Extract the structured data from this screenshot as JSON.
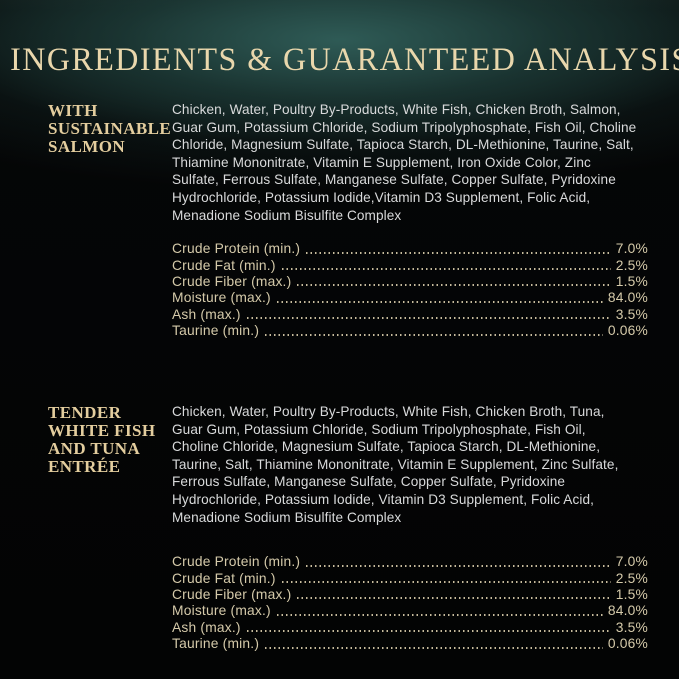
{
  "page": {
    "title": "INGREDIENTS & GUARANTEED ANALYSIS"
  },
  "colors": {
    "background_teal_glow": "#2f5d58",
    "background_black": "#050607",
    "title_gold": "#e9d7ac",
    "heading_gold": "#e3cd9e",
    "body_text": "#d9dadb",
    "analysis_text": "#d5caaa"
  },
  "sections": [
    {
      "heading": "WITH\nSUSTAINABLE\nSALMON",
      "ingredients": "Chicken, Water, Poultry By-Products, White Fish, Chicken Broth, Salmon,\nGuar Gum, Potassium Chloride, Sodium Tripolyphosphate, Fish Oil, Choline\nChloride, Magnesium Sulfate, Tapioca Starch, DL-Methionine, Taurine, Salt,\nThiamine Mononitrate, Vitamin E Supplement, Iron Oxide Color, Zinc\nSulfate, Ferrous Sulfate, Manganese Sulfate, Copper Sulfate, Pyridoxine\nHydrochloride, Potassium Iodide,Vitamin D3 Supplement, Folic Acid,\nMenadione Sodium Bisulfite Complex",
      "analysis": {
        "rows": [
          {
            "label": "Crude Protein (min.)",
            "value": "7.0%"
          },
          {
            "label": "Crude Fat (min.)",
            "value": "2.5%"
          },
          {
            "label": "Crude Fiber (max.)",
            "value": "1.5%"
          },
          {
            "label": "Moisture (max.)",
            "value": "84.0%"
          },
          {
            "label": "Ash (max.)",
            "value": "3.5%"
          },
          {
            "label": "Taurine (min.)",
            "value": "0.06%"
          }
        ]
      }
    },
    {
      "heading": "TENDER\nWHITE FISH\nAND TUNA\nENTRÉE",
      "ingredients": "Chicken, Water, Poultry By-Products, White Fish, Chicken Broth, Tuna,\nGuar Gum, Potassium Chloride, Sodium Tripolyphosphate, Fish Oil,\nCholine Chloride, Magnesium Sulfate, Tapioca Starch, DL-Methionine,\nTaurine, Salt, Thiamine Mononitrate, Vitamin E Supplement, Zinc Sulfate,\nFerrous Sulfate, Manganese Sulfate, Copper Sulfate, Pyridoxine\nHydrochloride, Potassium Iodide, Vitamin D3 Supplement, Folic Acid,\nMenadione Sodium Bisulfite Complex",
      "analysis": {
        "rows": [
          {
            "label": "Crude Protein (min.)",
            "value": "7.0%"
          },
          {
            "label": "Crude Fat (min.)",
            "value": "2.5%"
          },
          {
            "label": "Crude Fiber (max.)",
            "value": "1.5%"
          },
          {
            "label": "Moisture (max.)",
            "value": "84.0%"
          },
          {
            "label": "Ash (max.)",
            "value": "3.5%"
          },
          {
            "label": "Taurine (min.)",
            "value": "0.06%"
          }
        ]
      }
    }
  ]
}
